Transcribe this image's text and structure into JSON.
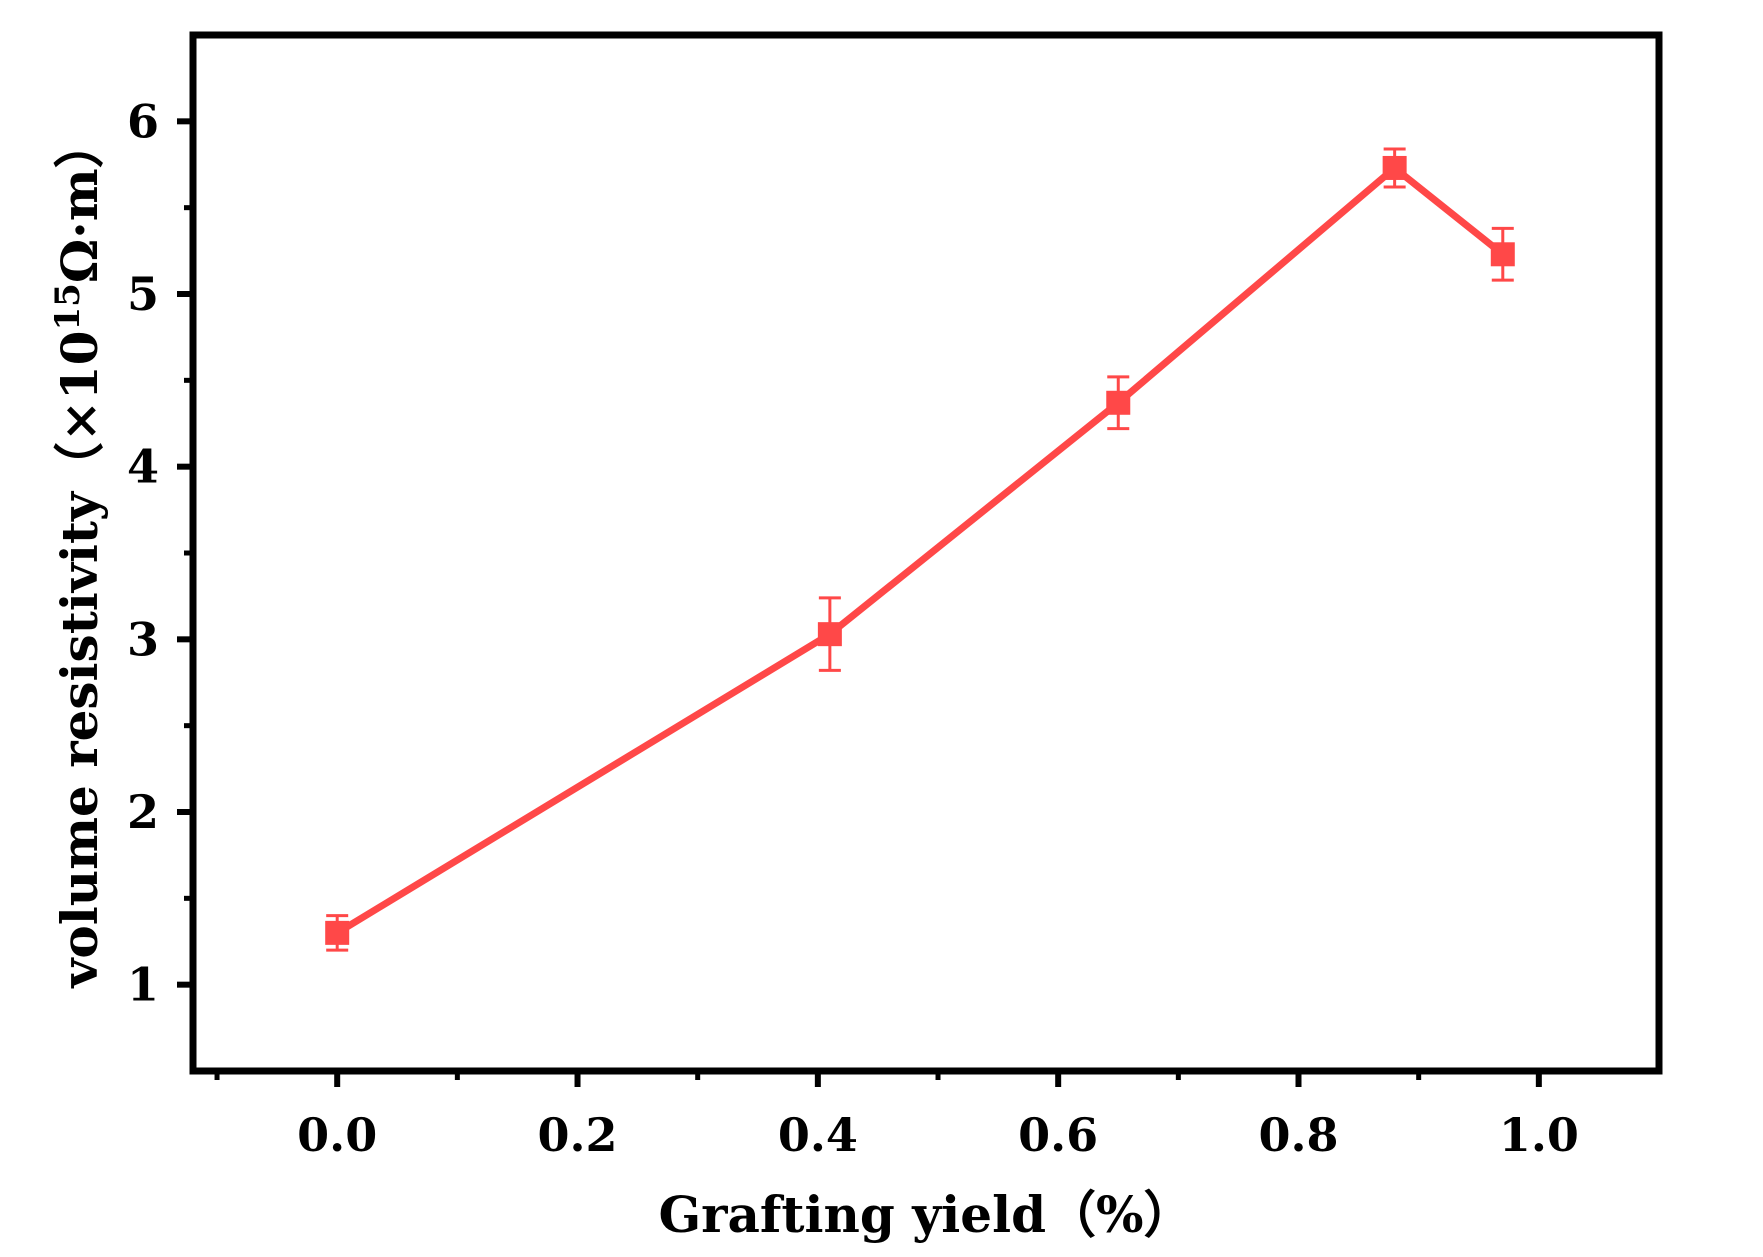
{
  "chart_data": {
    "type": "line",
    "xlabel": "Grafting yield（%）",
    "ylabel": {
      "main": "volume resistivity（×10",
      "exponent": "15",
      "unit": "Ω·m）"
    },
    "xlim": [
      -0.12,
      1.1
    ],
    "ylim": [
      0.5,
      6.5
    ],
    "x_ticks": [
      0.0,
      0.2,
      0.4,
      0.6,
      0.8,
      1.0
    ],
    "x_tick_labels": [
      "0.0",
      "0.2",
      "0.4",
      "0.6",
      "0.8",
      "1.0"
    ],
    "y_ticks": [
      1,
      2,
      3,
      4,
      5,
      6
    ],
    "y_tick_labels": [
      "1",
      "2",
      "3",
      "4",
      "5",
      "6"
    ],
    "grid": false,
    "legend": "none",
    "series": [
      {
        "color": "#ff4848",
        "marker": "square",
        "points": [
          {
            "x": 0.0,
            "y": 1.3,
            "err": 0.1
          },
          {
            "x": 0.41,
            "y": 3.03,
            "err": 0.21
          },
          {
            "x": 0.65,
            "y": 4.37,
            "err": 0.15
          },
          {
            "x": 0.88,
            "y": 5.73,
            "err": 0.11
          },
          {
            "x": 0.97,
            "y": 5.23,
            "err": 0.15
          }
        ]
      }
    ]
  }
}
